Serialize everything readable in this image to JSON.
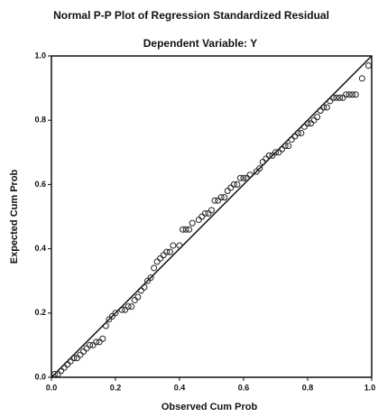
{
  "chart_data": {
    "type": "scatter",
    "title": "Normal P-P Plot of Regression Standardized Residual",
    "subtitle": "Dependent Variable: Y",
    "x_label": "Observed Cum Prob",
    "y_label": "Expected Cum Prob",
    "xlim": [
      0,
      1
    ],
    "ylim": [
      0,
      1
    ],
    "xticks": [
      {
        "value": 0,
        "label": "0.0"
      },
      0.2,
      0.4,
      0.6,
      0.8,
      {
        "value": 1,
        "label": "1.0"
      }
    ],
    "yticks": [
      {
        "value": 0,
        "label": "0.0"
      },
      0.2,
      0.4,
      0.6,
      0.8,
      {
        "value": 1,
        "label": "1.0"
      }
    ],
    "color": "#222222",
    "x": [
      0.01,
      0.02,
      0.03,
      0.04,
      0.05,
      0.06,
      0.07,
      0.08,
      0.09,
      0.1,
      0.11,
      0.12,
      0.13,
      0.14,
      0.15,
      0.16,
      0.17,
      0.18,
      0.19,
      0.2,
      0.22,
      0.23,
      0.24,
      0.25,
      0.26,
      0.27,
      0.28,
      0.29,
      0.3,
      0.31,
      0.32,
      0.33,
      0.34,
      0.35,
      0.36,
      0.37,
      0.38,
      0.4,
      0.41,
      0.42,
      0.43,
      0.44,
      0.46,
      0.47,
      0.48,
      0.49,
      0.5,
      0.51,
      0.52,
      0.53,
      0.54,
      0.55,
      0.56,
      0.57,
      0.58,
      0.59,
      0.6,
      0.61,
      0.62,
      0.64,
      0.65,
      0.66,
      0.67,
      0.68,
      0.69,
      0.7,
      0.71,
      0.72,
      0.73,
      0.74,
      0.75,
      0.76,
      0.77,
      0.78,
      0.79,
      0.8,
      0.81,
      0.82,
      0.83,
      0.84,
      0.85,
      0.86,
      0.87,
      0.88,
      0.89,
      0.9,
      0.91,
      0.92,
      0.93,
      0.94,
      0.95,
      0.97,
      0.99
    ],
    "values": [
      0.01,
      0.01,
      0.02,
      0.03,
      0.04,
      0.05,
      0.06,
      0.06,
      0.07,
      0.08,
      0.09,
      0.1,
      0.1,
      0.11,
      0.11,
      0.12,
      0.16,
      0.18,
      0.19,
      0.2,
      0.21,
      0.21,
      0.22,
      0.22,
      0.24,
      0.25,
      0.27,
      0.28,
      0.3,
      0.31,
      0.34,
      0.36,
      0.37,
      0.38,
      0.39,
      0.39,
      0.41,
      0.41,
      0.46,
      0.46,
      0.46,
      0.48,
      0.49,
      0.5,
      0.51,
      0.51,
      0.52,
      0.55,
      0.55,
      0.56,
      0.56,
      0.58,
      0.59,
      0.6,
      0.6,
      0.62,
      0.62,
      0.62,
      0.63,
      0.64,
      0.65,
      0.67,
      0.68,
      0.69,
      0.69,
      0.7,
      0.7,
      0.71,
      0.72,
      0.72,
      0.74,
      0.75,
      0.76,
      0.76,
      0.78,
      0.79,
      0.79,
      0.8,
      0.81,
      0.83,
      0.84,
      0.84,
      0.86,
      0.87,
      0.87,
      0.87,
      0.87,
      0.88,
      0.88,
      0.88,
      0.88,
      0.93,
      0.97
    ]
  }
}
